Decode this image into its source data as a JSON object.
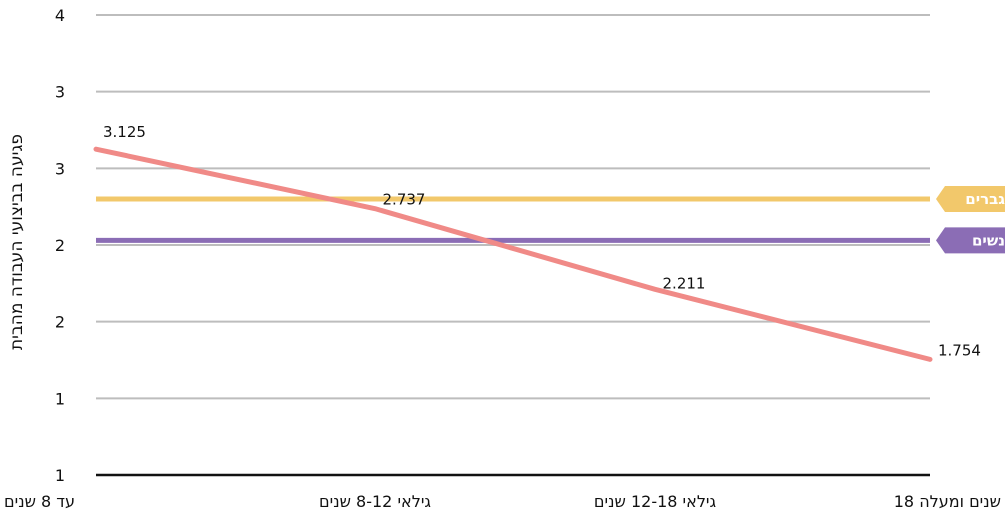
{
  "chart_data": {
    "type": "line",
    "ylabel": "פגיעה בביצועי העבודה מהבית",
    "yticks": [
      "1",
      "1",
      "2",
      "2",
      "3",
      "3",
      "4"
    ],
    "ylim": [
      1,
      4
    ],
    "categories": [
      "עד 8 שנים",
      "גילאי 8-12 שנים",
      "גילאי 12-18 שנים",
      "18 שנים ומעלה"
    ],
    "series": [
      {
        "values": [
          3.125,
          2.737,
          2.211,
          1.754
        ],
        "color": "#f08a87",
        "labels": [
          "3.125",
          "2.737",
          "2.211",
          "1.754"
        ]
      }
    ],
    "reference_lines": [
      {
        "name": "גברים",
        "value": 2.8,
        "color": "#f2c86b",
        "text_color": "#ffffff"
      },
      {
        "name": "נשים",
        "value": 2.53,
        "color": "#8b6db5",
        "text_color": "#ffffff"
      }
    ],
    "grid": true
  }
}
